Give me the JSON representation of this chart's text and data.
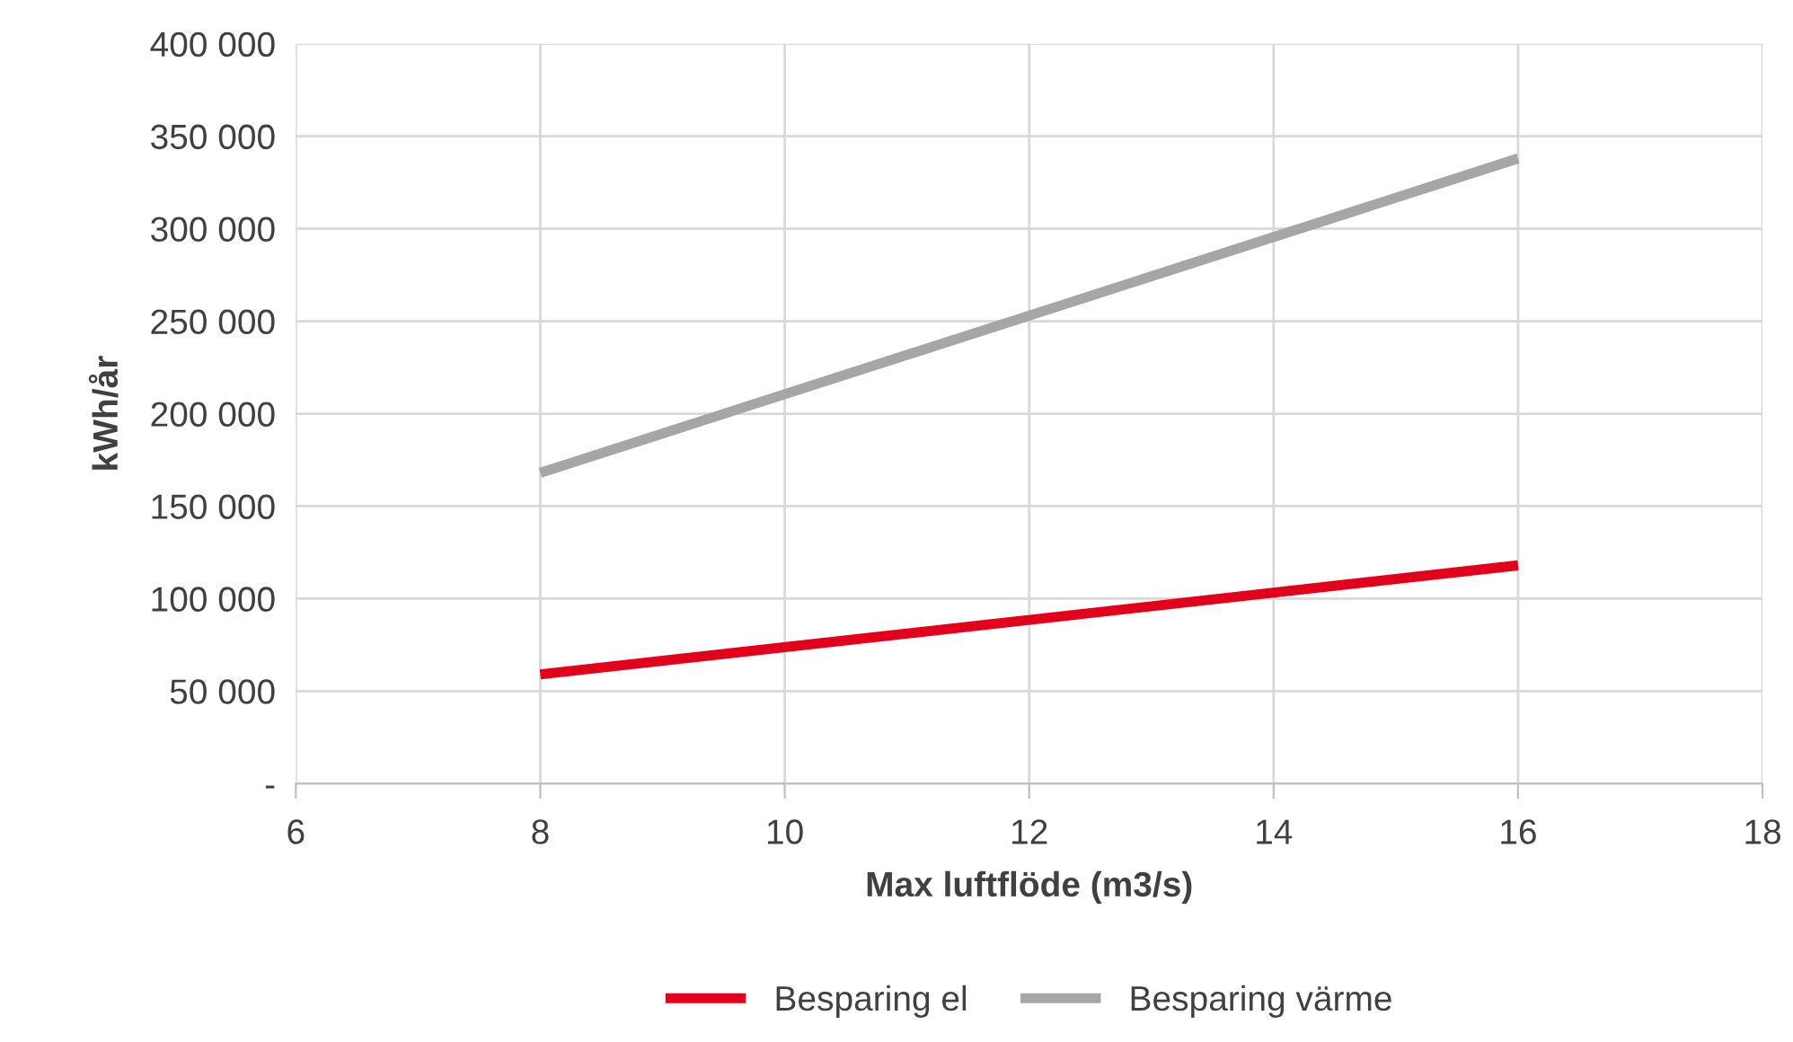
{
  "chart_data": {
    "type": "line",
    "xlabel": "Max luftflöde (m3/s)",
    "ylabel": "kWh/år",
    "x": [
      8,
      16
    ],
    "series": [
      {
        "name": "Besparing el",
        "color": "#e3001b",
        "values": [
          59000,
          118000
        ]
      },
      {
        "name": "Besparing värme",
        "color": "#a6a6a6",
        "values": [
          168000,
          338000
        ]
      }
    ],
    "xlim": [
      6,
      18
    ],
    "xticks": [
      6,
      8,
      10,
      12,
      14,
      16,
      18
    ],
    "ylim": [
      0,
      400000
    ],
    "yticks": [
      {
        "value": 0,
        "label": "-"
      },
      {
        "value": 50000,
        "label": "50 000"
      },
      {
        "value": 100000,
        "label": "100 000"
      },
      {
        "value": 150000,
        "label": "150 000"
      },
      {
        "value": 200000,
        "label": "200 000"
      },
      {
        "value": 250000,
        "label": "250 000"
      },
      {
        "value": 300000,
        "label": "300 000"
      },
      {
        "value": 350000,
        "label": "350 000"
      },
      {
        "value": 400000,
        "label": "400 000"
      }
    ],
    "grid": true,
    "legend": "bottom",
    "marker": "none",
    "line_style": "solid"
  }
}
